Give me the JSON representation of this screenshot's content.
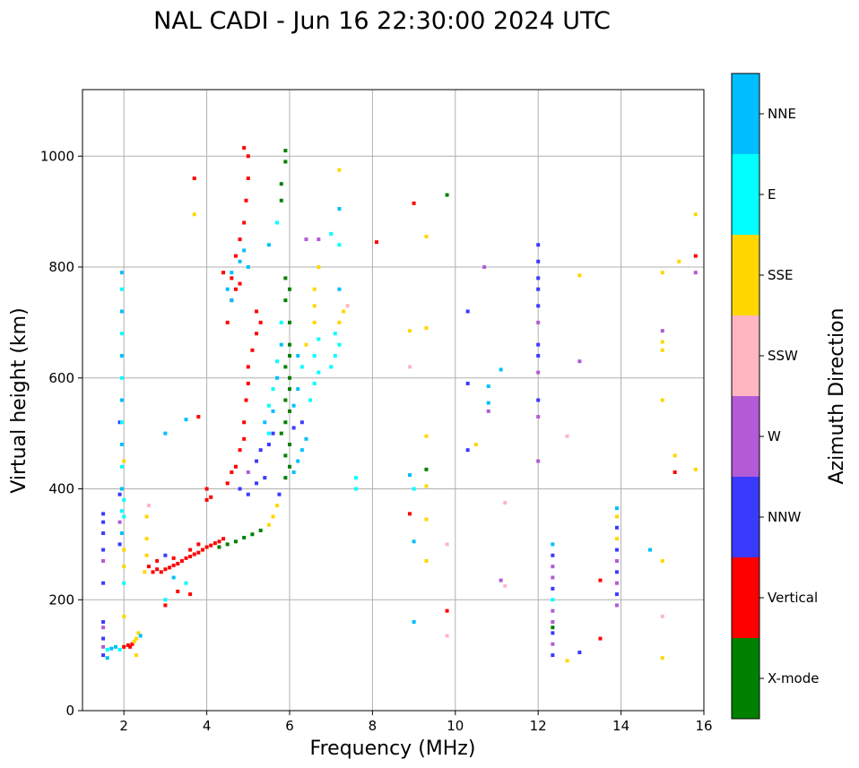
{
  "chart_data": {
    "type": "scatter",
    "title": "NAL CADI - Jun 16 22:30:00 2024 UTC",
    "xlabel": "Frequency (MHz)",
    "ylabel": "Virtual height (km)",
    "xlim": [
      1,
      16
    ],
    "ylim": [
      0,
      1120
    ],
    "xticks": [
      2,
      4,
      6,
      8,
      10,
      12,
      14,
      16
    ],
    "yticks": [
      0,
      200,
      400,
      600,
      800,
      1000
    ],
    "grid": true,
    "colorbar": {
      "label": "Azimuth Direction",
      "categories": [
        {
          "name": "X-mode",
          "color": "#008000"
        },
        {
          "name": "Vertical",
          "color": "#ff0000"
        },
        {
          "name": "NNW",
          "color": "#3a3aff"
        },
        {
          "name": "W",
          "color": "#b35ad6"
        },
        {
          "name": "SSW",
          "color": "#ffb6c1"
        },
        {
          "name": "SSE",
          "color": "#ffd700"
        },
        {
          "name": "E",
          "color": "#00ffff"
        },
        {
          "name": "NNE",
          "color": "#00bfff"
        }
      ]
    },
    "points": [
      [
        1.5,
        100,
        "NNW"
      ],
      [
        1.5,
        115,
        "W"
      ],
      [
        1.5,
        130,
        "NNW"
      ],
      [
        1.5,
        150,
        "W"
      ],
      [
        1.5,
        160,
        "NNW"
      ],
      [
        1.5,
        230,
        "NNW"
      ],
      [
        1.5,
        270,
        "W"
      ],
      [
        1.5,
        290,
        "NNW"
      ],
      [
        1.5,
        320,
        "NNW"
      ],
      [
        1.5,
        340,
        "NNW"
      ],
      [
        1.5,
        355,
        "NNW"
      ],
      [
        1.6,
        95,
        "NNE"
      ],
      [
        1.6,
        110,
        "E"
      ],
      [
        1.7,
        112,
        "NNE"
      ],
      [
        1.8,
        115,
        "NNE"
      ],
      [
        1.9,
        110,
        "E"
      ],
      [
        1.9,
        300,
        "NNW"
      ],
      [
        1.9,
        340,
        "W"
      ],
      [
        1.9,
        390,
        "NNW"
      ],
      [
        1.9,
        520,
        "NNW"
      ],
      [
        1.95,
        320,
        "NNE"
      ],
      [
        1.95,
        360,
        "E"
      ],
      [
        1.95,
        400,
        "NNE"
      ],
      [
        1.95,
        440,
        "E"
      ],
      [
        1.95,
        480,
        "NNE"
      ],
      [
        1.95,
        520,
        "E"
      ],
      [
        1.95,
        560,
        "NNE"
      ],
      [
        1.95,
        600,
        "E"
      ],
      [
        1.95,
        640,
        "NNE"
      ],
      [
        1.95,
        680,
        "E"
      ],
      [
        1.95,
        720,
        "NNE"
      ],
      [
        1.95,
        760,
        "E"
      ],
      [
        1.95,
        790,
        "NNE"
      ],
      [
        2.0,
        170,
        "SSE"
      ],
      [
        2.0,
        230,
        "E"
      ],
      [
        2.0,
        260,
        "SSE"
      ],
      [
        2.0,
        290,
        "SSE"
      ],
      [
        2.0,
        350,
        "E"
      ],
      [
        2.0,
        380,
        "E"
      ],
      [
        2.0,
        450,
        "SSE"
      ],
      [
        2.0,
        115,
        "Vertical"
      ],
      [
        2.1,
        118,
        "Vertical"
      ],
      [
        2.15,
        115,
        "Vertical"
      ],
      [
        2.2,
        120,
        "Vertical"
      ],
      [
        2.25,
        125,
        "SSE"
      ],
      [
        2.3,
        130,
        "SSE"
      ],
      [
        2.35,
        140,
        "SSE"
      ],
      [
        2.4,
        135,
        "NNE"
      ],
      [
        2.3,
        100,
        "SSE"
      ],
      [
        2.5,
        250,
        "SSE"
      ],
      [
        2.55,
        280,
        "SSE"
      ],
      [
        2.55,
        310,
        "SSE"
      ],
      [
        2.55,
        350,
        "SSE"
      ],
      [
        2.6,
        370,
        "SSW"
      ],
      [
        2.6,
        260,
        "Vertical"
      ],
      [
        2.7,
        250,
        "Vertical"
      ],
      [
        2.8,
        255,
        "Vertical"
      ],
      [
        2.9,
        250,
        "Vertical"
      ],
      [
        3.0,
        255,
        "Vertical"
      ],
      [
        3.1,
        258,
        "Vertical"
      ],
      [
        3.2,
        262,
        "Vertical"
      ],
      [
        3.3,
        265,
        "Vertical"
      ],
      [
        3.4,
        270,
        "Vertical"
      ],
      [
        3.5,
        275,
        "Vertical"
      ],
      [
        3.6,
        278,
        "Vertical"
      ],
      [
        3.7,
        282,
        "Vertical"
      ],
      [
        3.8,
        285,
        "Vertical"
      ],
      [
        3.9,
        290,
        "Vertical"
      ],
      [
        4.0,
        295,
        "Vertical"
      ],
      [
        4.1,
        298,
        "Vertical"
      ],
      [
        4.2,
        302,
        "Vertical"
      ],
      [
        4.3,
        305,
        "Vertical"
      ],
      [
        4.4,
        310,
        "Vertical"
      ],
      [
        2.8,
        270,
        "Vertical"
      ],
      [
        3.0,
        280,
        "NNW"
      ],
      [
        3.2,
        275,
        "Vertical"
      ],
      [
        3.6,
        290,
        "Vertical"
      ],
      [
        3.8,
        300,
        "Vertical"
      ],
      [
        3.0,
        190,
        "Vertical"
      ],
      [
        3.3,
        215,
        "Vertical"
      ],
      [
        3.6,
        210,
        "Vertical"
      ],
      [
        3.5,
        230,
        "E"
      ],
      [
        3.2,
        240,
        "NNE"
      ],
      [
        3.0,
        200,
        "E"
      ],
      [
        3.8,
        530,
        "Vertical"
      ],
      [
        3.7,
        960,
        "Vertical"
      ],
      [
        3.7,
        895,
        "SSE"
      ],
      [
        3.0,
        500,
        "NNE"
      ],
      [
        3.5,
        525,
        "NNE"
      ],
      [
        4.3,
        295,
        "X-mode"
      ],
      [
        4.5,
        300,
        "X-mode"
      ],
      [
        4.7,
        305,
        "X-mode"
      ],
      [
        4.9,
        312,
        "X-mode"
      ],
      [
        5.1,
        318,
        "X-mode"
      ],
      [
        5.3,
        325,
        "X-mode"
      ],
      [
        5.5,
        335,
        "SSE"
      ],
      [
        5.6,
        350,
        "SSE"
      ],
      [
        5.7,
        370,
        "SSE"
      ],
      [
        5.75,
        390,
        "NNW"
      ],
      [
        4.0,
        380,
        "Vertical"
      ],
      [
        4.1,
        385,
        "Vertical"
      ],
      [
        4.0,
        400,
        "Vertical"
      ],
      [
        4.5,
        410,
        "Vertical"
      ],
      [
        4.6,
        430,
        "Vertical"
      ],
      [
        4.7,
        440,
        "Vertical"
      ],
      [
        4.8,
        470,
        "Vertical"
      ],
      [
        4.9,
        490,
        "Vertical"
      ],
      [
        4.9,
        520,
        "Vertical"
      ],
      [
        4.95,
        560,
        "Vertical"
      ],
      [
        5.0,
        590,
        "Vertical"
      ],
      [
        5.0,
        620,
        "Vertical"
      ],
      [
        5.1,
        650,
        "Vertical"
      ],
      [
        5.2,
        680,
        "Vertical"
      ],
      [
        5.3,
        700,
        "Vertical"
      ],
      [
        5.2,
        720,
        "Vertical"
      ],
      [
        4.8,
        400,
        "NNW"
      ],
      [
        5.0,
        390,
        "NNW"
      ],
      [
        5.2,
        410,
        "NNW"
      ],
      [
        5.4,
        420,
        "NNW"
      ],
      [
        5.0,
        430,
        "W"
      ],
      [
        5.2,
        450,
        "NNW"
      ],
      [
        5.3,
        470,
        "NNW"
      ],
      [
        5.5,
        480,
        "NNW"
      ],
      [
        5.6,
        500,
        "NNW"
      ],
      [
        5.4,
        520,
        "NNE"
      ],
      [
        5.5,
        550,
        "E"
      ],
      [
        5.6,
        580,
        "E"
      ],
      [
        5.7,
        600,
        "NNE"
      ],
      [
        5.7,
        630,
        "E"
      ],
      [
        5.8,
        660,
        "NNE"
      ],
      [
        5.8,
        700,
        "E"
      ],
      [
        5.5,
        500,
        "E"
      ],
      [
        5.6,
        540,
        "NNE"
      ],
      [
        5.9,
        420,
        "X-mode"
      ],
      [
        6.0,
        440,
        "X-mode"
      ],
      [
        5.9,
        460,
        "X-mode"
      ],
      [
        6.0,
        480,
        "X-mode"
      ],
      [
        5.8,
        500,
        "X-mode"
      ],
      [
        5.9,
        520,
        "X-mode"
      ],
      [
        6.0,
        540,
        "X-mode"
      ],
      [
        5.9,
        560,
        "X-mode"
      ],
      [
        6.0,
        580,
        "X-mode"
      ],
      [
        6.0,
        600,
        "X-mode"
      ],
      [
        5.9,
        620,
        "X-mode"
      ],
      [
        6.0,
        640,
        "X-mode"
      ],
      [
        6.0,
        660,
        "X-mode"
      ],
      [
        6.0,
        700,
        "X-mode"
      ],
      [
        5.9,
        740,
        "X-mode"
      ],
      [
        6.0,
        760,
        "X-mode"
      ],
      [
        5.9,
        780,
        "X-mode"
      ],
      [
        6.1,
        430,
        "NNE"
      ],
      [
        6.2,
        450,
        "NNE"
      ],
      [
        6.3,
        470,
        "NNE"
      ],
      [
        6.4,
        490,
        "NNE"
      ],
      [
        6.1,
        510,
        "NNW"
      ],
      [
        6.3,
        520,
        "NNW"
      ],
      [
        6.1,
        550,
        "NNE"
      ],
      [
        6.2,
        580,
        "NNE"
      ],
      [
        6.3,
        620,
        "E"
      ],
      [
        6.2,
        640,
        "NNE"
      ],
      [
        6.4,
        660,
        "SSE"
      ],
      [
        6.5,
        560,
        "E"
      ],
      [
        6.6,
        590,
        "E"
      ],
      [
        6.7,
        610,
        "E"
      ],
      [
        6.6,
        640,
        "E"
      ],
      [
        6.7,
        670,
        "E"
      ],
      [
        6.6,
        700,
        "SSE"
      ],
      [
        6.6,
        730,
        "SSE"
      ],
      [
        6.6,
        760,
        "SSE"
      ],
      [
        6.7,
        800,
        "SSE"
      ],
      [
        7.0,
        620,
        "E"
      ],
      [
        7.1,
        640,
        "E"
      ],
      [
        7.2,
        660,
        "E"
      ],
      [
        7.1,
        680,
        "E"
      ],
      [
        7.2,
        700,
        "SSE"
      ],
      [
        7.3,
        720,
        "SSE"
      ],
      [
        7.4,
        730,
        "SSW"
      ],
      [
        7.2,
        760,
        "NNE"
      ],
      [
        4.5,
        700,
        "Vertical"
      ],
      [
        4.6,
        740,
        "Vertical"
      ],
      [
        4.7,
        760,
        "Vertical"
      ],
      [
        4.6,
        780,
        "Vertical"
      ],
      [
        4.8,
        770,
        "Vertical"
      ],
      [
        4.4,
        790,
        "Vertical"
      ],
      [
        4.7,
        820,
        "Vertical"
      ],
      [
        4.8,
        850,
        "Vertical"
      ],
      [
        4.9,
        880,
        "Vertical"
      ],
      [
        4.95,
        920,
        "Vertical"
      ],
      [
        5.0,
        960,
        "Vertical"
      ],
      [
        5.0,
        1000,
        "Vertical"
      ],
      [
        4.9,
        1015,
        "Vertical"
      ],
      [
        4.6,
        790,
        "NNE"
      ],
      [
        4.8,
        810,
        "NNE"
      ],
      [
        4.9,
        830,
        "NNE"
      ],
      [
        5.0,
        800,
        "NNE"
      ],
      [
        4.5,
        760,
        "NNE"
      ],
      [
        4.6,
        740,
        "NNE"
      ],
      [
        5.5,
        840,
        "NNE"
      ],
      [
        5.7,
        880,
        "E"
      ],
      [
        5.8,
        920,
        "X-mode"
      ],
      [
        5.8,
        950,
        "X-mode"
      ],
      [
        5.9,
        990,
        "X-mode"
      ],
      [
        5.9,
        1010,
        "X-mode"
      ],
      [
        6.4,
        850,
        "W"
      ],
      [
        6.7,
        850,
        "W"
      ],
      [
        7.0,
        860,
        "E"
      ],
      [
        7.2,
        840,
        "E"
      ],
      [
        7.2,
        975,
        "SSE"
      ],
      [
        7.2,
        905,
        "NNE"
      ],
      [
        8.1,
        845,
        "Vertical"
      ],
      [
        7.6,
        400,
        "E"
      ],
      [
        7.6,
        420,
        "E"
      ],
      [
        8.9,
        355,
        "Vertical"
      ],
      [
        9.0,
        305,
        "NNE"
      ],
      [
        8.9,
        425,
        "NNE"
      ],
      [
        9.0,
        400,
        "E"
      ],
      [
        9.3,
        435,
        "X-mode"
      ],
      [
        9.3,
        405,
        "SSE"
      ],
      [
        9.3,
        345,
        "SSE"
      ],
      [
        9.3,
        270,
        "SSE"
      ],
      [
        9.3,
        495,
        "SSE"
      ],
      [
        8.9,
        685,
        "SSE"
      ],
      [
        8.9,
        620,
        "SSW"
      ],
      [
        9.3,
        690,
        "SSE"
      ],
      [
        9.0,
        915,
        "Vertical"
      ],
      [
        9.3,
        855,
        "SSE"
      ],
      [
        9.8,
        930,
        "X-mode"
      ],
      [
        10.7,
        800,
        "W"
      ],
      [
        10.3,
        720,
        "NNW"
      ],
      [
        10.3,
        590,
        "NNW"
      ],
      [
        10.3,
        470,
        "NNW"
      ],
      [
        10.5,
        480,
        "SSE"
      ],
      [
        10.8,
        585,
        "NNE"
      ],
      [
        10.8,
        555,
        "NNE"
      ],
      [
        10.8,
        540,
        "W"
      ],
      [
        11.1,
        615,
        "NNE"
      ],
      [
        11.2,
        375,
        "SSW"
      ],
      [
        11.1,
        235,
        "W"
      ],
      [
        11.2,
        225,
        "SSW"
      ],
      [
        9.8,
        300,
        "SSW"
      ],
      [
        9.8,
        180,
        "Vertical"
      ],
      [
        9.8,
        135,
        "SSW"
      ],
      [
        9.0,
        160,
        "NNE"
      ],
      [
        12.0,
        450,
        "W"
      ],
      [
        12.0,
        530,
        "W"
      ],
      [
        12.0,
        560,
        "NNW"
      ],
      [
        12.0,
        610,
        "W"
      ],
      [
        12.0,
        640,
        "NNW"
      ],
      [
        12.0,
        660,
        "NNW"
      ],
      [
        12.0,
        700,
        "W"
      ],
      [
        12.0,
        730,
        "NNW"
      ],
      [
        12.0,
        760,
        "NNW"
      ],
      [
        12.0,
        780,
        "NNW"
      ],
      [
        12.0,
        810,
        "NNW"
      ],
      [
        12.0,
        840,
        "NNW"
      ],
      [
        12.35,
        300,
        "NNE"
      ],
      [
        12.35,
        280,
        "NNW"
      ],
      [
        12.35,
        260,
        "W"
      ],
      [
        12.35,
        240,
        "W"
      ],
      [
        12.35,
        220,
        "NNW"
      ],
      [
        12.35,
        200,
        "E"
      ],
      [
        12.35,
        180,
        "W"
      ],
      [
        12.35,
        160,
        "W"
      ],
      [
        12.35,
        150,
        "X-mode"
      ],
      [
        12.35,
        140,
        "NNW"
      ],
      [
        12.35,
        120,
        "W"
      ],
      [
        12.35,
        100,
        "NNW"
      ],
      [
        12.7,
        90,
        "SSE"
      ],
      [
        13.0,
        105,
        "NNW"
      ],
      [
        12.7,
        495,
        "SSW"
      ],
      [
        13.0,
        630,
        "W"
      ],
      [
        13.0,
        785,
        "SSE"
      ],
      [
        13.5,
        235,
        "Vertical"
      ],
      [
        13.5,
        130,
        "Vertical"
      ],
      [
        13.9,
        190,
        "W"
      ],
      [
        13.9,
        210,
        "NNW"
      ],
      [
        13.9,
        230,
        "W"
      ],
      [
        13.9,
        250,
        "NNW"
      ],
      [
        13.9,
        270,
        "W"
      ],
      [
        13.9,
        290,
        "NNW"
      ],
      [
        13.9,
        310,
        "SSE"
      ],
      [
        13.9,
        330,
        "NNW"
      ],
      [
        13.9,
        350,
        "SSE"
      ],
      [
        13.9,
        365,
        "NNE"
      ],
      [
        14.7,
        290,
        "NNE"
      ],
      [
        15.0,
        270,
        "SSE"
      ],
      [
        15.0,
        170,
        "SSW"
      ],
      [
        15.0,
        95,
        "SSE"
      ],
      [
        15.0,
        560,
        "SSE"
      ],
      [
        15.0,
        650,
        "SSE"
      ],
      [
        15.0,
        665,
        "SSE"
      ],
      [
        15.0,
        685,
        "W"
      ],
      [
        15.0,
        790,
        "SSE"
      ],
      [
        15.3,
        460,
        "SSE"
      ],
      [
        15.3,
        430,
        "Vertical"
      ],
      [
        15.4,
        810,
        "SSE"
      ],
      [
        15.8,
        820,
        "Vertical"
      ],
      [
        15.8,
        790,
        "W"
      ],
      [
        15.8,
        895,
        "SSE"
      ],
      [
        15.8,
        435,
        "SSE"
      ]
    ]
  }
}
